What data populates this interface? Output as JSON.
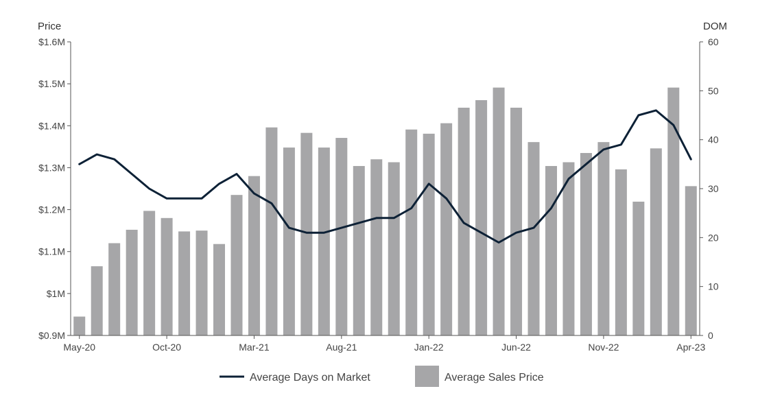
{
  "chart_data": {
    "type": "bar+line",
    "categories": [
      "May-20",
      "Jun-20",
      "Jul-20",
      "Aug-20",
      "Sep-20",
      "Oct-20",
      "Nov-20",
      "Dec-20",
      "Jan-21",
      "Feb-21",
      "Mar-21",
      "Apr-21",
      "May-21",
      "Jun-21",
      "Jul-21",
      "Aug-21",
      "Sep-21",
      "Oct-21",
      "Nov-21",
      "Dec-21",
      "Jan-22",
      "Feb-22",
      "Mar-22",
      "Apr-22",
      "May-22",
      "Jun-22",
      "Jul-22",
      "Aug-22",
      "Sep-22",
      "Oct-22",
      "Nov-22",
      "Dec-22",
      "Jan-23",
      "Feb-23",
      "Mar-23",
      "Apr-23"
    ],
    "x_tick_labels": [
      "May-20",
      "Oct-20",
      "Mar-21",
      "Aug-21",
      "Jan-22",
      "Jun-22",
      "Nov-22",
      "Apr-23"
    ],
    "left_axis": {
      "title": "Price",
      "range": [
        0.9,
        1.6
      ],
      "ticks": [
        0.9,
        1.0,
        1.1,
        1.2,
        1.3,
        1.4,
        1.5,
        1.6
      ],
      "tick_labels": [
        "$0.9M",
        "$1M",
        "$1.1M",
        "$1.2M",
        "$1.3M",
        "$1.4M",
        "$1.5M",
        "$1.6M"
      ]
    },
    "right_axis": {
      "title": "DOM",
      "range": [
        0,
        60
      ],
      "ticks": [
        0,
        10,
        20,
        30,
        40,
        50,
        60
      ],
      "tick_labels": [
        "0",
        "10",
        "20",
        "30",
        "40",
        "50",
        "60"
      ]
    },
    "series": [
      {
        "name": "Average Sales Price",
        "type": "bar",
        "axis": "left",
        "color": "#a6a6a8",
        "values": [
          0.945,
          1.065,
          1.12,
          1.152,
          1.197,
          1.18,
          1.148,
          1.15,
          1.118,
          1.235,
          1.28,
          1.396,
          1.348,
          1.383,
          1.348,
          1.371,
          1.304,
          1.32,
          1.313,
          1.391,
          1.381,
          1.406,
          1.443,
          1.461,
          1.491,
          1.443,
          1.361,
          1.304,
          1.313,
          1.335,
          1.361,
          1.296,
          1.219,
          1.346,
          1.491,
          1.256
        ]
      },
      {
        "name": "Average Days on Market",
        "type": "line",
        "axis": "right",
        "color": "#0d2136",
        "values": [
          35,
          37,
          36,
          33,
          30,
          28,
          28,
          28,
          31,
          33,
          29,
          27,
          22,
          21,
          21,
          22,
          23,
          24,
          24,
          26,
          31,
          28,
          23,
          21,
          19,
          21,
          22,
          26,
          32,
          35,
          38,
          39,
          45,
          46,
          43,
          36
        ]
      }
    ],
    "grid": false,
    "legend": "bottom"
  }
}
